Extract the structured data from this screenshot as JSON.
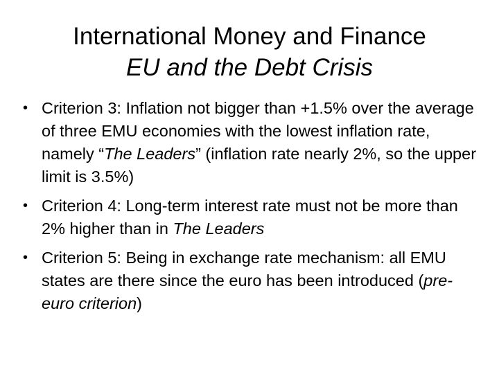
{
  "title": {
    "line1": "International Money and Finance",
    "line2": "EU and the Debt Crisis"
  },
  "bullets": [
    {
      "pre": "Criterion 3: Inflation not bigger than +1.5% over the average of three EMU economies with the lowest inflation rate, namely “",
      "em": "The Leaders",
      "post": "” (inflation rate nearly 2%, so the upper limit is 3.5%)"
    },
    {
      "pre": "Criterion 4: Long-term interest rate must not be more than 2% higher than in ",
      "em": "The Leaders",
      "post": ""
    },
    {
      "pre": "Criterion 5: Being in exchange rate mechanism: all EMU states are there since the euro has been introduced (",
      "em": "pre-euro criterion",
      "post": ")"
    }
  ],
  "bullet_glyph": "•"
}
